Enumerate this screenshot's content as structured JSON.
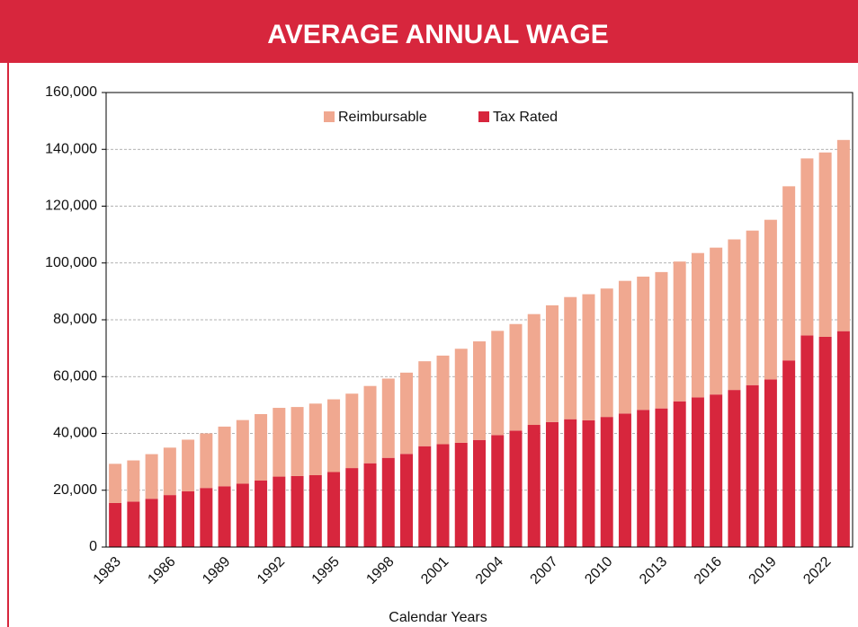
{
  "chart_data": {
    "type": "stacked_bar",
    "title": "AVERAGE ANNUAL WAGE",
    "x_label": "Calendar Years",
    "categories": [
      "1983",
      null,
      null,
      "1986",
      null,
      null,
      "1989",
      null,
      null,
      "1992",
      null,
      null,
      "1995",
      null,
      null,
      "1998",
      null,
      null,
      "2001",
      null,
      null,
      "2004",
      null,
      null,
      "2007",
      null,
      null,
      "2010",
      null,
      null,
      "2013",
      null,
      null,
      "2016",
      null,
      null,
      "2019",
      null,
      null,
      "2022",
      null
    ],
    "series": [
      {
        "name": "Tax Rated",
        "color": "#d7263d",
        "values": [
          15500,
          16000,
          17000,
          18300,
          19600,
          20800,
          21400,
          22300,
          23400,
          24800,
          25000,
          25300,
          26400,
          27800,
          29500,
          31400,
          32800,
          35500,
          36200,
          36700,
          37700,
          39400,
          41000,
          43000,
          44000,
          45000,
          44600,
          45800,
          47000,
          48300,
          48800,
          51300,
          52700,
          53700,
          55300,
          57000,
          59000,
          65700,
          74500,
          74000,
          76000
        ]
      },
      {
        "name": "Reimbursable",
        "color": "#f0a890",
        "values": [
          13800,
          14500,
          15700,
          16700,
          18200,
          19200,
          21000,
          22400,
          23400,
          24200,
          24300,
          25200,
          25600,
          26200,
          27200,
          27900,
          28600,
          29900,
          31200,
          33100,
          34700,
          36700,
          37500,
          39000,
          41100,
          43000,
          44400,
          45200,
          46700,
          46900,
          48000,
          49200,
          50800,
          51700,
          53000,
          54400,
          56200,
          61300,
          62300,
          64900,
          67300
        ]
      }
    ],
    "ylim": [
      0,
      160000
    ],
    "yticks": [
      0,
      {
        "value": 20000,
        "label": "20,000"
      },
      {
        "value": 40000,
        "label": "40,000"
      },
      {
        "value": 60000,
        "label": "60,000"
      },
      {
        "value": 80000,
        "label": "80,000"
      },
      {
        "value": 100000,
        "label": "100,000"
      },
      {
        "value": 120000,
        "label": "120,000"
      },
      {
        "value": 140000,
        "label": "140,000"
      },
      {
        "value": 160000,
        "label": "160,000"
      }
    ],
    "grid": true,
    "legend": "top"
  }
}
